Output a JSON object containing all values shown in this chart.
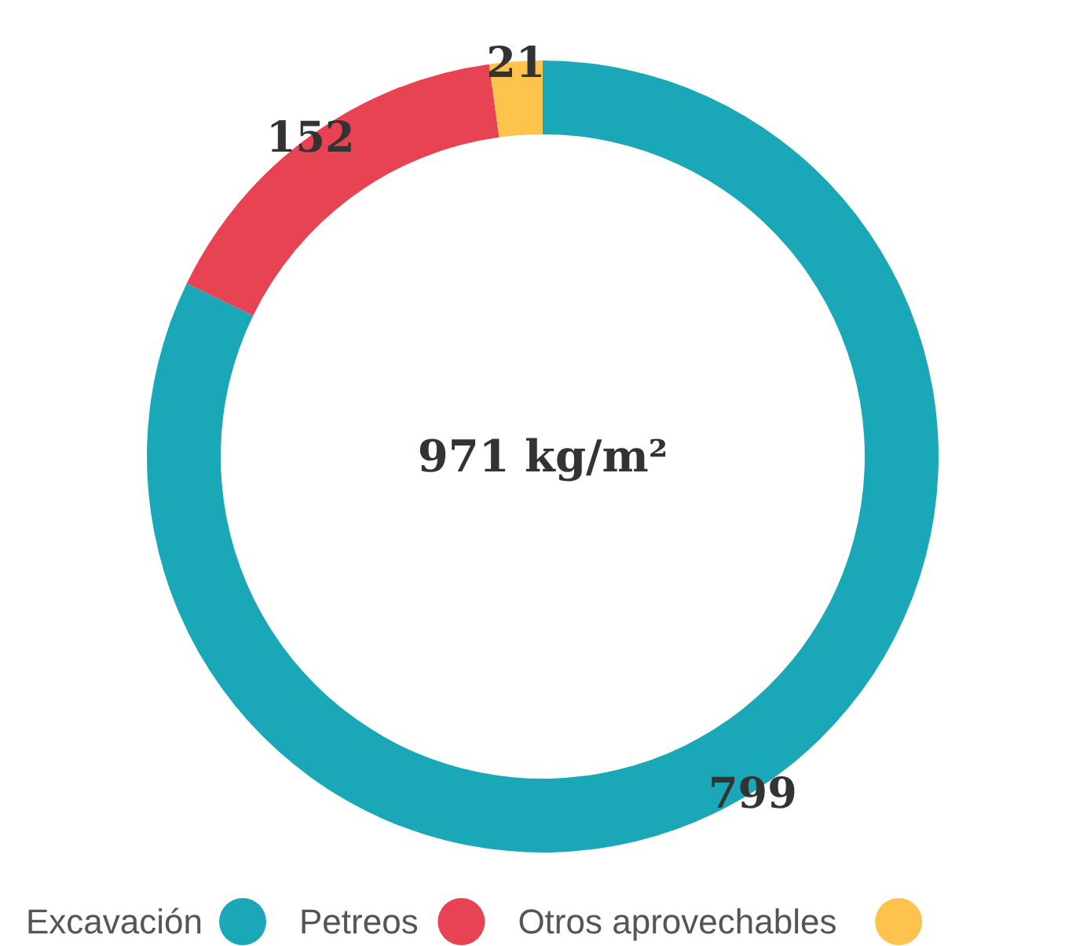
{
  "chart_data": {
    "type": "donut",
    "categories": [
      "Excavación",
      "Petreos",
      "Otros aprovechables"
    ],
    "values": [
      799,
      152,
      21
    ],
    "colors": [
      "#1aa7b8",
      "#e84352",
      "#fec34d"
    ],
    "data_labels": true,
    "legend": "bottom",
    "annotations": [
      "971 kg/m²"
    ]
  }
}
